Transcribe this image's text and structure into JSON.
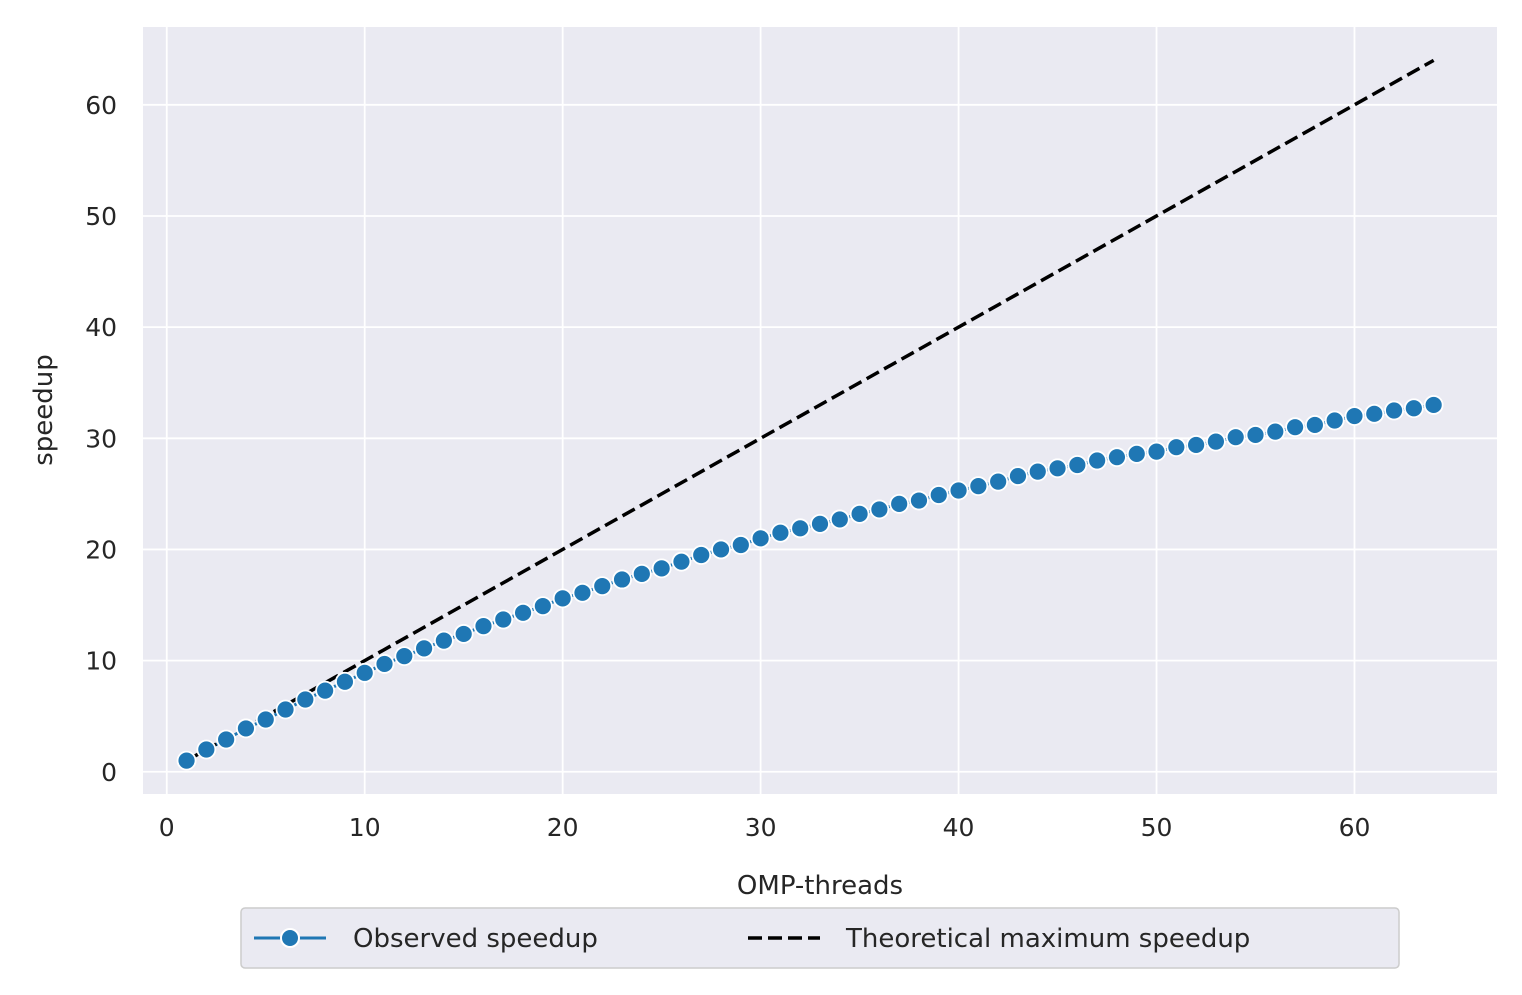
{
  "chart_data": {
    "type": "line",
    "xlabel": "OMP-threads",
    "ylabel": "speedup",
    "xlim": [
      -1.2,
      67.2
    ],
    "ylim": [
      -2,
      67
    ],
    "xticks": [
      0,
      10,
      20,
      30,
      40,
      50,
      60
    ],
    "yticks": [
      0,
      10,
      20,
      30,
      40,
      50,
      60
    ],
    "grid": true,
    "background": "#EAEAF2",
    "legend_position": "bottom-center",
    "series": [
      {
        "name": "Observed speedup",
        "style": "line-with-circle-markers",
        "color": "#1F77B4",
        "x": [
          1,
          2,
          3,
          4,
          5,
          6,
          7,
          8,
          9,
          10,
          11,
          12,
          13,
          14,
          15,
          16,
          17,
          18,
          19,
          20,
          21,
          22,
          23,
          24,
          25,
          26,
          27,
          28,
          29,
          30,
          31,
          32,
          33,
          34,
          35,
          36,
          37,
          38,
          39,
          40,
          41,
          42,
          43,
          44,
          45,
          46,
          47,
          48,
          49,
          50,
          51,
          52,
          53,
          54,
          55,
          56,
          57,
          58,
          59,
          60,
          61,
          62,
          63,
          64
        ],
        "y": [
          1.0,
          2.0,
          2.9,
          3.9,
          4.7,
          5.6,
          6.5,
          7.3,
          8.1,
          8.9,
          9.7,
          10.4,
          11.1,
          11.8,
          12.4,
          13.1,
          13.7,
          14.3,
          14.9,
          15.6,
          16.1,
          16.7,
          17.3,
          17.8,
          18.3,
          18.9,
          19.5,
          20.0,
          20.4,
          21.0,
          21.5,
          21.9,
          22.3,
          22.7,
          23.2,
          23.6,
          24.1,
          24.4,
          24.9,
          25.3,
          25.7,
          26.1,
          26.6,
          27.0,
          27.3,
          27.6,
          28.0,
          28.3,
          28.6,
          28.8,
          29.2,
          29.4,
          29.7,
          30.1,
          30.3,
          30.6,
          31.0,
          31.2,
          31.6,
          32.0,
          32.2,
          32.5,
          32.7,
          33.0
        ]
      },
      {
        "name": "Theoretical maximum speedup",
        "style": "dashed-line",
        "color": "#000000",
        "x": [
          1,
          64
        ],
        "y": [
          1,
          64
        ]
      }
    ]
  }
}
